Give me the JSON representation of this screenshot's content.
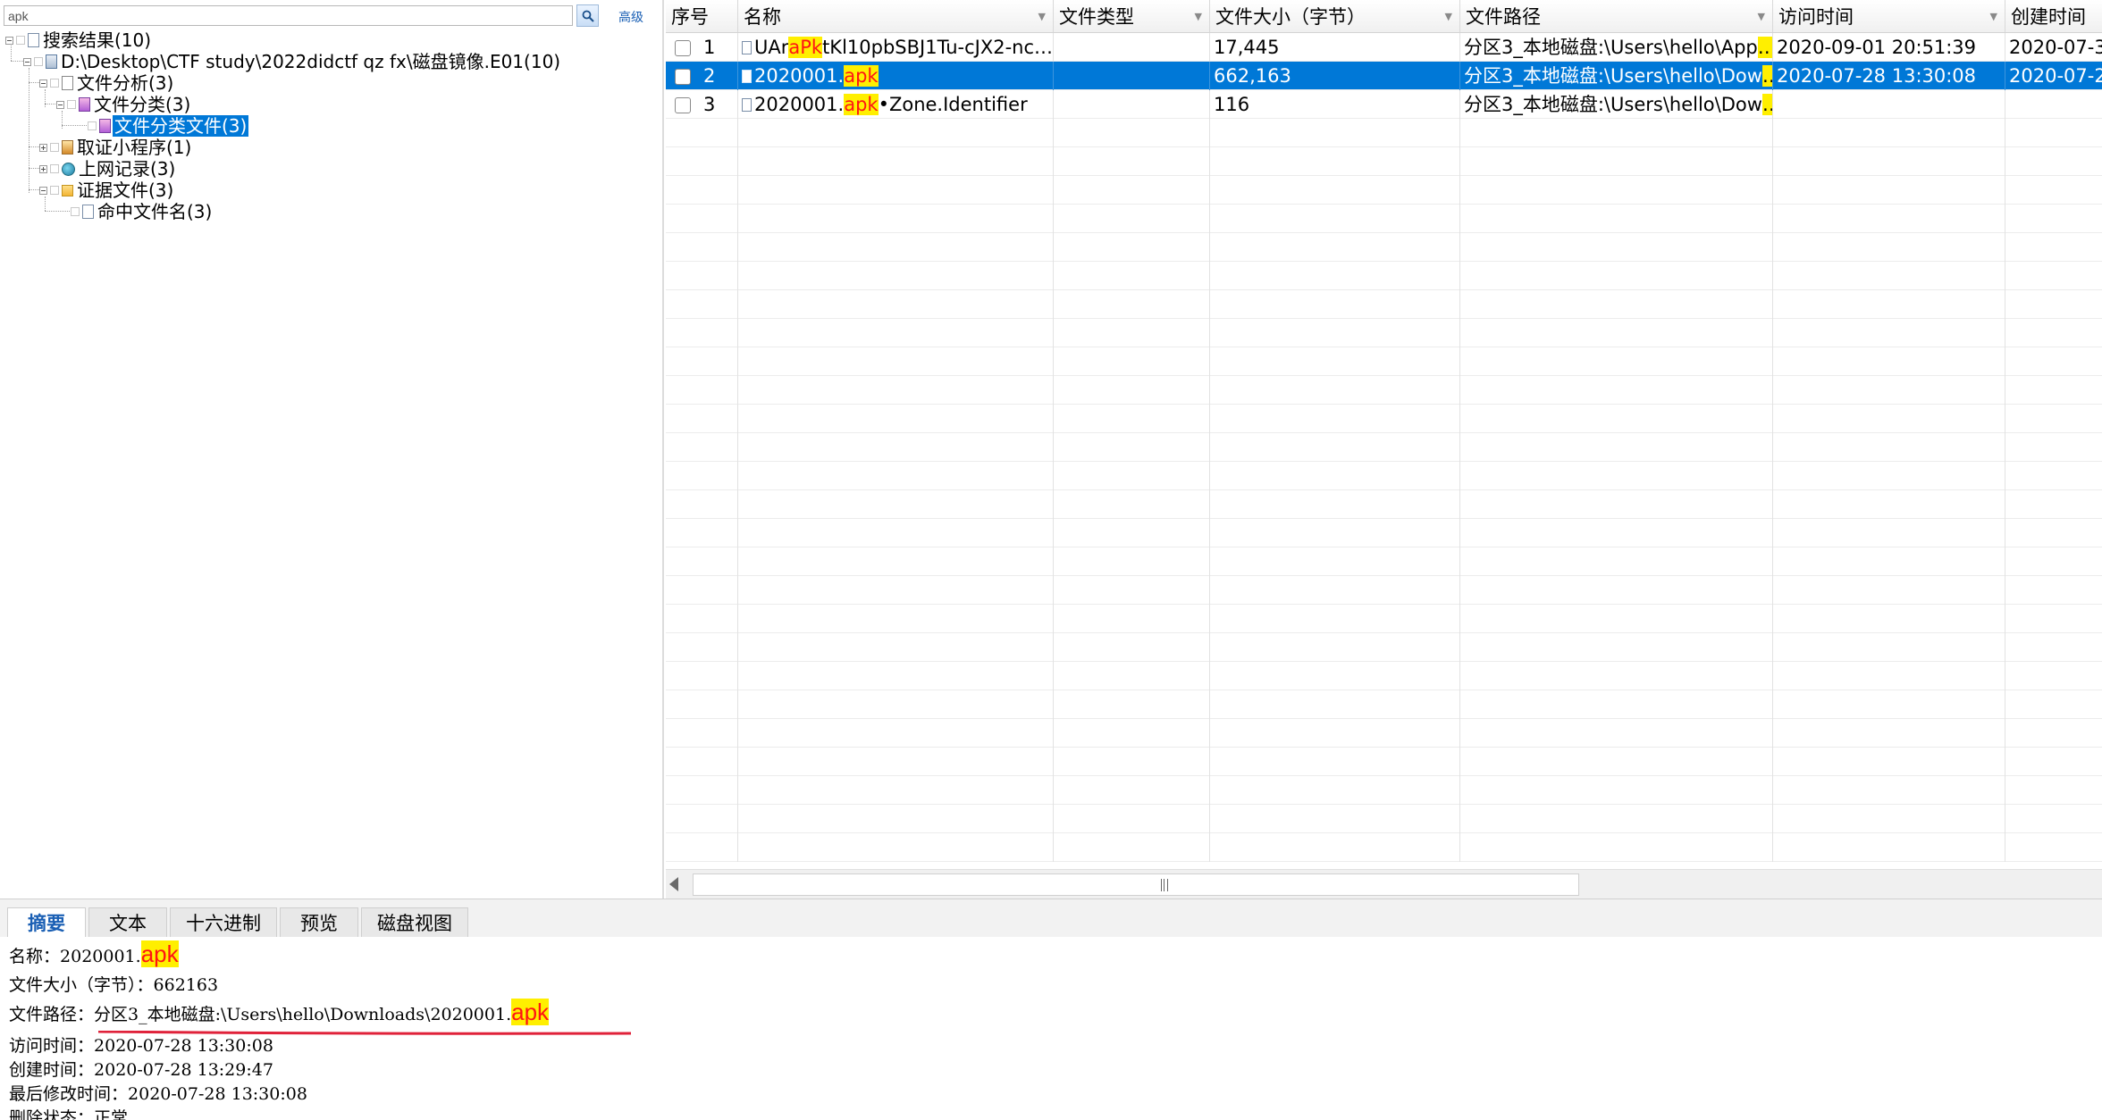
{
  "search": {
    "value": "apk",
    "advanced_label": "高级"
  },
  "tree": {
    "root": "搜索结果(10)",
    "image": "D:\\Desktop\\CTF study\\2022didctf qz fx\\磁盘镜像.E01(10)",
    "file_analysis": "文件分析(3)",
    "file_category": "文件分类(3)",
    "file_category_files": "文件分类文件(3)",
    "forensic_apps": "取证小程序(1)",
    "web_records": "上网记录(3)",
    "evidence_files": "证据文件(3)",
    "matched_names": "命中文件名(3)"
  },
  "grid": {
    "columns": [
      "序号",
      "名称",
      "文件类型",
      "文件大小（字节）",
      "文件路径",
      "访问时间",
      "创建时间"
    ],
    "rows": [
      {
        "no": "1",
        "name_pre": "UAr",
        "name_hl": "aPk",
        "name_post": "tKl10pbSBJ1Tu-cJX2-nc…",
        "type": "",
        "size": "17,445",
        "path": "分区3_本地磁盘:\\Users\\hello\\App",
        "path_more": "…",
        "atime": "2020-09-01 20:51:39",
        "ctime": "2020-07-3",
        "selected": "false"
      },
      {
        "no": "2",
        "name_pre": "2020001.",
        "name_hl": "apk",
        "name_post": "",
        "type": "",
        "size": "662,163",
        "path": "分区3_本地磁盘:\\Users\\hello\\Dow",
        "path_more": "…",
        "atime": "2020-07-28 13:30:08",
        "ctime": "2020-07-2",
        "selected": "true"
      },
      {
        "no": "3",
        "name_pre": "2020001.",
        "name_hl": "apk",
        "name_post": "•Zone.Identifier",
        "type": "",
        "size": "116",
        "path": "分区3_本地磁盘:\\Users\\hello\\Dow",
        "path_more": "…",
        "atime": "",
        "ctime": "",
        "selected": "false"
      }
    ]
  },
  "tabs": [
    "摘要",
    "文本",
    "十六进制",
    "预览",
    "磁盘视图"
  ],
  "details": {
    "name_label": "名称：",
    "name_pre": "2020001.",
    "name_hl": "apk",
    "size_label": "文件大小（字节）：",
    "size": "662163",
    "path_label": "文件路径：",
    "path_pre": "分区3_本地磁盘:\\Users\\hello\\Downloads\\2020001.",
    "path_hl": "apk",
    "atime_label": "访问时间：",
    "atime": "2020-07-28 13:30:08",
    "ctime_label": "创建时间：",
    "ctime": "2020-07-28 13:29:47",
    "mtime_label": "最后修改时间：",
    "mtime": "2020-07-28 13:30:08",
    "deleted_label": "删除状态：",
    "deleted": "正常"
  },
  "colors": {
    "selection": "#0078d7",
    "highlight_bg": "#ffef00",
    "highlight_fg": "#ff1414",
    "annotation_red": "#e0223a",
    "tab_active": "#1a5fb4"
  },
  "icons": [
    "search-icon",
    "document-icon",
    "drive-icon",
    "pen-icon",
    "category-icon",
    "tool-icon",
    "globe-icon",
    "folder-icon",
    "file-icon",
    "filter-icon",
    "scroll-left-icon"
  ]
}
